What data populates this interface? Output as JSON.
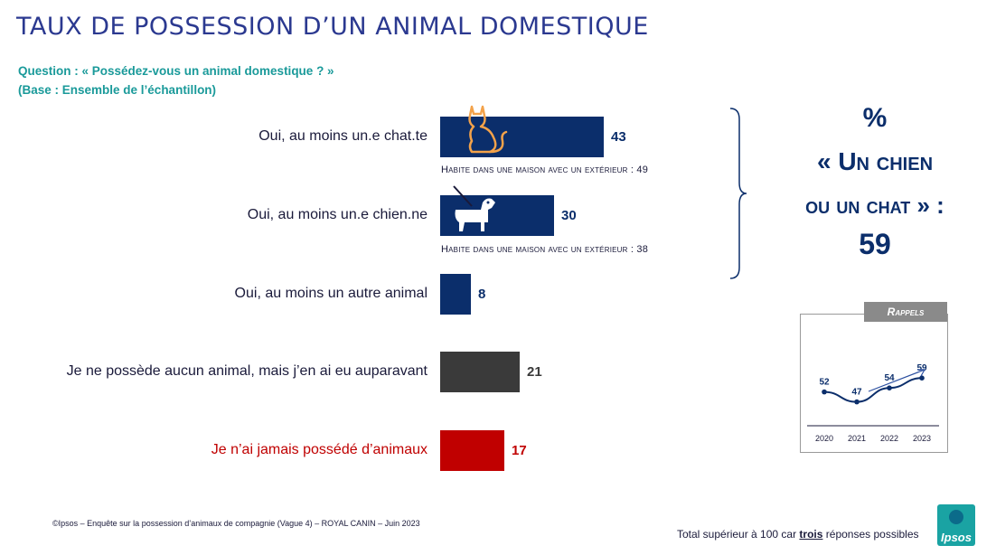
{
  "title": "TAUX DE POSSESSION D’UN ANIMAL DOMESTIQUE",
  "question": "Question : « Possédez-vous un animal domestique ? »",
  "base": "(Base : Ensemble de l’échantillon)",
  "colors": {
    "title": "#2b3990",
    "navy": "#0b2e6b",
    "gray": "#3a3a3a",
    "red": "#c00000",
    "teal": "#1a9a9a"
  },
  "chart_data": {
    "type": "bar",
    "orientation": "horizontal",
    "categories": [
      "Oui, au moins un.e chat.te",
      "Oui, au moins un.e chien.ne",
      "Oui, au moins un autre animal",
      "Je ne possède aucun animal, mais j’en ai eu auparavant",
      "Je n’ai jamais possédé d’animaux"
    ],
    "values": [
      43,
      30,
      8,
      21,
      17
    ],
    "bar_colors": [
      "#0b2e6b",
      "#0b2e6b",
      "#0b2e6b",
      "#3a3a3a",
      "#c00000"
    ],
    "icons": [
      "cat-icon",
      "dog-icon",
      null,
      null,
      null
    ],
    "notes": [
      "Habite dans une maison avec un extérieur : 49",
      "Habite dans une maison avec un extérieur : 38"
    ]
  },
  "summary": {
    "pct": "%",
    "line1": "« Un chien",
    "line2": "ou un chat » :",
    "value": "59"
  },
  "recall": {
    "tab": "Rappels",
    "chart_data": {
      "type": "line",
      "x": [
        "2020",
        "2021",
        "2022",
        "2023"
      ],
      "values": [
        52,
        47,
        54,
        59
      ]
    }
  },
  "footer": {
    "source": "©Ipsos – Enquête sur la possession d’animaux de compagnie (Vague 4) – ROYAL CANIN – Juin 2023",
    "total_prefix": "Total supérieur à 100 car ",
    "total_emph": "trois",
    "total_suffix": " réponses possibles"
  },
  "logo": "Ipsos"
}
